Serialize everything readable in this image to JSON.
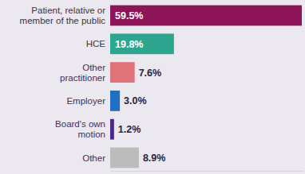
{
  "chart_data": {
    "type": "bar",
    "orientation": "horizontal",
    "categories": [
      "Patient, relative or\nmember of the public",
      "HCE",
      "Other\npractitioner",
      "Employer",
      "Board's own\nmotion",
      "Other"
    ],
    "values": [
      59.5,
      19.8,
      7.6,
      3.0,
      1.2,
      8.9
    ],
    "value_labels": [
      "59.5%",
      "19.8%",
      "7.6%",
      "3.0%",
      "1.2%",
      "8.9%"
    ],
    "colors": [
      "#8c1457",
      "#2ea58f",
      "#e0727a",
      "#1f6fc2",
      "#4b2888",
      "#bcbcbc"
    ],
    "xlim": [
      0,
      60
    ],
    "data_labels": true,
    "tick_labels": false,
    "grid": false
  }
}
